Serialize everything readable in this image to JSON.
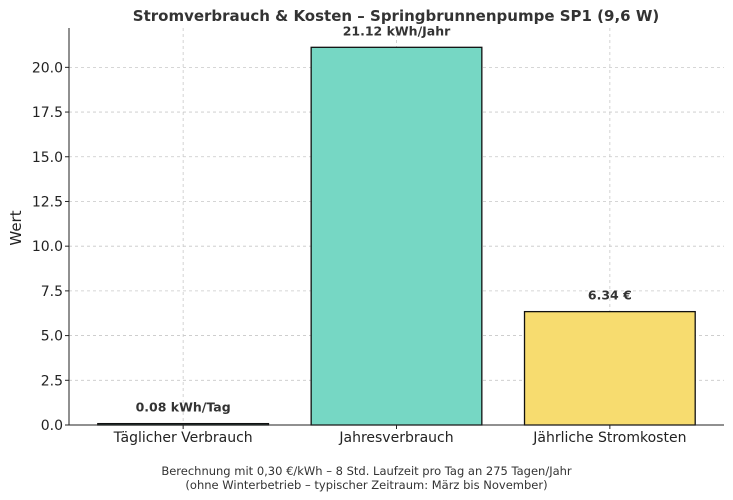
{
  "chart_data": {
    "type": "bar",
    "title": "Stromverbrauch & Kosten – Springbrunnenpumpe SP1 (9,6 W)",
    "xlabel": "",
    "ylabel": "Wert",
    "ylim": [
      0,
      22.2
    ],
    "yticks": [
      "0.0",
      "2.5",
      "5.0",
      "7.5",
      "10.0",
      "12.5",
      "15.0",
      "17.5",
      "20.0"
    ],
    "grid": true,
    "categories": [
      "Täglicher Verbrauch",
      "Jahresverbrauch",
      "Jährliche Stromkosten"
    ],
    "values": [
      0.0768,
      21.12,
      6.34
    ],
    "data_labels": [
      "0.08 kWh/Tag",
      "21.12 kWh/Jahr",
      "6.34 €"
    ],
    "colors": [
      "#76d7c4",
      "#76d7c4",
      "#f7dc6f"
    ]
  },
  "footnote": {
    "line1": "Berechnung mit 0,30 €/kWh – 8 Std. Laufzeit pro Tag an 275 Tagen/Jahr",
    "line2": "(ohne Winterbetrieb – typischer Zeitraum: März bis November)"
  }
}
